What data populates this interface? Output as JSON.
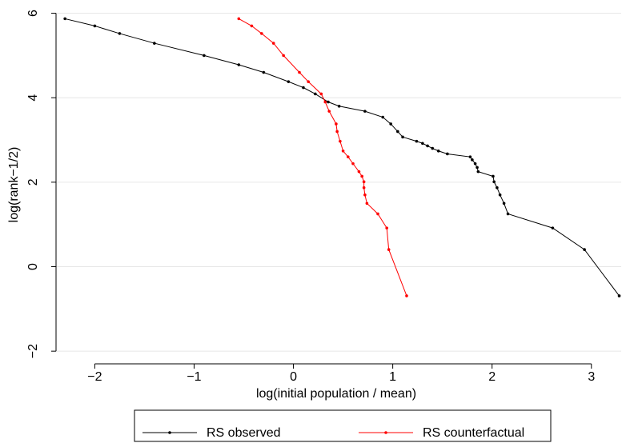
{
  "chart_data": {
    "type": "line",
    "x_label": "log(initial population / mean)",
    "y_label": "log(rank−1/2)",
    "xlim": [
      -2.39,
      3.3
    ],
    "ylim": [
      -2.3,
      6.2
    ],
    "xticks": [
      {
        "value": -2,
        "label": "−2"
      },
      {
        "value": -1,
        "label": "−1"
      },
      0,
      1,
      2,
      3
    ],
    "yticks": [
      {
        "value": -2,
        "label": "−2"
      },
      0,
      2,
      4,
      6
    ],
    "grid": true,
    "legend": "bottom",
    "series": [
      {
        "name": "RS observed",
        "color": "#000000",
        "x": [
          -2.3,
          -2.0,
          -1.75,
          -1.4,
          -0.9,
          -0.55,
          -0.3,
          -0.05,
          0.1,
          0.22,
          0.35,
          0.46,
          0.72,
          0.9,
          0.98,
          1.05,
          1.1,
          1.24,
          1.3,
          1.35,
          1.4,
          1.46,
          1.55,
          1.78,
          1.8,
          1.83,
          1.85,
          1.86,
          2.01,
          2.02,
          2.05,
          2.08,
          2.12,
          2.16,
          2.61,
          2.93,
          3.28
        ],
        "values": [
          5.87,
          5.7,
          5.52,
          5.29,
          5.0,
          4.78,
          4.6,
          4.38,
          4.24,
          4.09,
          3.9,
          3.8,
          3.68,
          3.54,
          3.38,
          3.2,
          3.07,
          2.97,
          2.92,
          2.86,
          2.8,
          2.74,
          2.67,
          2.6,
          2.53,
          2.44,
          2.35,
          2.25,
          2.14,
          2.01,
          1.87,
          1.7,
          1.5,
          1.25,
          0.916,
          0.405,
          -0.69
        ]
      },
      {
        "name": "RS counterfactual",
        "color": "#ff0000",
        "x": [
          -0.55,
          -0.42,
          -0.32,
          -0.2,
          -0.1,
          0.06,
          0.15,
          0.28,
          0.32,
          0.36,
          0.43,
          0.44,
          0.47,
          0.5,
          0.55,
          0.6,
          0.66,
          0.69,
          0.71,
          0.71,
          0.72,
          0.74,
          0.85,
          0.94,
          0.96,
          1.14
        ],
        "values": [
          5.87,
          5.7,
          5.52,
          5.29,
          5.0,
          4.6,
          4.38,
          4.09,
          3.9,
          3.68,
          3.38,
          3.2,
          2.97,
          2.74,
          2.6,
          2.44,
          2.25,
          2.14,
          2.01,
          1.87,
          1.7,
          1.5,
          1.25,
          0.916,
          0.405,
          -0.69
        ]
      }
    ]
  }
}
